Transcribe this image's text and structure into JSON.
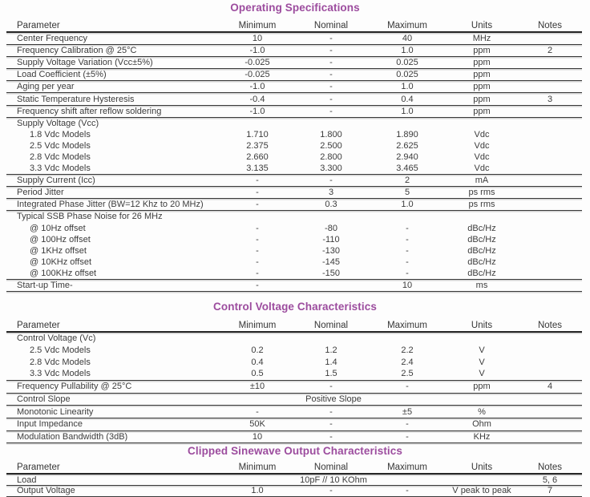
{
  "colors": {
    "accent": "#9c4c9e",
    "text": "#3c3c3c",
    "rule": "#3a3a3a"
  },
  "tables": [
    {
      "title": "Operating Specifications",
      "columns": [
        "Parameter",
        "Minimum",
        "Nominal",
        "Maximum",
        "Units",
        "Notes"
      ],
      "rows": [
        {
          "type": "data",
          "param": "Center Frequency",
          "min": "10",
          "nom": "-",
          "max": "40",
          "units": "MHz",
          "notes": ""
        },
        {
          "type": "data",
          "param": "Frequency Calibration @ 25°C",
          "min": "-1.0",
          "nom": "-",
          "max": "1.0",
          "units": "ppm",
          "notes": "2"
        },
        {
          "type": "data",
          "param": "Supply Voltage Variation (Vcc±5%)",
          "min": "-0.025",
          "nom": "-",
          "max": "0.025",
          "units": "ppm",
          "notes": ""
        },
        {
          "type": "data",
          "param": "Load Coefficient (±5%)",
          "min": "-0.025",
          "nom": "-",
          "max": "0.025",
          "units": "ppm",
          "notes": ""
        },
        {
          "type": "data",
          "param": "Aging per year",
          "min": "-1.0",
          "nom": "-",
          "max": "1.0",
          "units": "ppm",
          "notes": ""
        },
        {
          "type": "data",
          "param": "Static Temperature Hysteresis",
          "min": "-0.4",
          "nom": "-",
          "max": "0.4",
          "units": "ppm",
          "notes": "3"
        },
        {
          "type": "data",
          "param": "Frequency shift after reflow soldering",
          "min": "-1.0",
          "nom": "-",
          "max": "1.0",
          "units": "ppm",
          "notes": ""
        },
        {
          "type": "group",
          "param": "Supply Voltage (Vcc)",
          "min": "",
          "nom": "",
          "max": "",
          "units": "",
          "notes": ""
        },
        {
          "type": "sub",
          "param": "1.8 Vdc Models",
          "min": "1.710",
          "nom": "1.800",
          "max": "1.890",
          "units": "Vdc",
          "notes": ""
        },
        {
          "type": "sub",
          "param": "2.5 Vdc Models",
          "min": "2.375",
          "nom": "2.500",
          "max": "2.625",
          "units": "Vdc",
          "notes": ""
        },
        {
          "type": "sub",
          "param": "2.8 Vdc Models",
          "min": "2.660",
          "nom": "2.800",
          "max": "2.940",
          "units": "Vdc",
          "notes": ""
        },
        {
          "type": "sublast",
          "param": "3.3 Vdc Models",
          "min": "3.135",
          "nom": "3.300",
          "max": "3.465",
          "units": "Vdc",
          "notes": ""
        },
        {
          "type": "data",
          "param": "Supply Current (Icc)",
          "min": "-",
          "nom": "-",
          "max": "2",
          "units": "mA",
          "notes": ""
        },
        {
          "type": "data",
          "param": "Period Jitter",
          "min": "-",
          "nom": "3",
          "max": "5",
          "units": "ps rms",
          "notes": ""
        },
        {
          "type": "data",
          "param": "Integrated Phase Jitter (BW=12 Khz to 20 MHz)",
          "min": "-",
          "nom": "0.3",
          "max": "1.0",
          "units": "ps rms",
          "notes": ""
        },
        {
          "type": "group",
          "param": "Typical SSB Phase Noise for 26 MHz",
          "min": "",
          "nom": "",
          "max": "",
          "units": "",
          "notes": ""
        },
        {
          "type": "sub",
          "param": "@ 10Hz offset",
          "min": "-",
          "nom": "-80",
          "max": "-",
          "units": "dBc/Hz",
          "notes": ""
        },
        {
          "type": "sub",
          "param": "@ 100Hz offset",
          "min": "-",
          "nom": "-110",
          "max": "-",
          "units": "dBc/Hz",
          "notes": ""
        },
        {
          "type": "sub",
          "param": "@ 1KHz offset",
          "min": "-",
          "nom": "-130",
          "max": "-",
          "units": "dBc/Hz",
          "notes": ""
        },
        {
          "type": "sub",
          "param": "@ 10KHz offset",
          "min": "-",
          "nom": "-145",
          "max": "-",
          "units": "dBc/Hz",
          "notes": ""
        },
        {
          "type": "sublast",
          "param": "@ 100KHz offset",
          "min": "-",
          "nom": "-150",
          "max": "-",
          "units": "dBc/Hz",
          "notes": ""
        },
        {
          "type": "data",
          "param": "Start-up Time-",
          "min": "-",
          "nom": "",
          "max": "10",
          "units": "ms",
          "notes": ""
        }
      ]
    },
    {
      "title": "Control Voltage Characteristics",
      "columns": [
        "Parameter",
        "Minimum",
        "Nominal",
        "Maximum",
        "Units",
        "Notes"
      ],
      "rows": [
        {
          "type": "group",
          "param": "Control Voltage (Vc)",
          "min": "",
          "nom": "",
          "max": "",
          "units": "",
          "notes": ""
        },
        {
          "type": "sub",
          "param": "2.5 Vdc Models",
          "min": "0.2",
          "nom": "1.2",
          "max": "2.2",
          "units": "V",
          "notes": ""
        },
        {
          "type": "sub",
          "param": "2.8 Vdc Models",
          "min": "0.4",
          "nom": "1.4",
          "max": "2.4",
          "units": "V",
          "notes": ""
        },
        {
          "type": "sublast",
          "param": "3.3 Vdc Models",
          "min": "0.5",
          "nom": "1.5",
          "max": "2.5",
          "units": "V",
          "notes": ""
        },
        {
          "type": "data",
          "param": "Frequency Pullability @ 25°C",
          "min": "±10",
          "nom": "-",
          "max": "-",
          "units": "ppm",
          "notes": "4"
        },
        {
          "type": "span",
          "param": "Control Slope",
          "span": "Positive Slope",
          "units": "",
          "notes": ""
        },
        {
          "type": "data",
          "param": "Monotonic Linearity",
          "min": "-",
          "nom": "-",
          "max": "±5",
          "units": "%",
          "notes": ""
        },
        {
          "type": "data",
          "param": "Input Impedance",
          "min": "50K",
          "nom": "-",
          "max": "-",
          "units": "Ohm",
          "notes": ""
        },
        {
          "type": "data",
          "param": "Modulation Bandwidth (3dB)",
          "min": "10",
          "nom": "-",
          "max": "-",
          "units": "KHz",
          "notes": ""
        }
      ]
    },
    {
      "title": "Clipped Sinewave Output Characteristics",
      "columns": [
        "Parameter",
        "Minimum",
        "Nominal",
        "Maximum",
        "Units",
        "Notes"
      ],
      "rows": [
        {
          "type": "span",
          "param": "Load",
          "span": "10pF // 10 KOhm",
          "units": "",
          "notes": "5, 6"
        },
        {
          "type": "data",
          "param": "Output Voltage",
          "min": "1.0",
          "nom": "-",
          "max": "-",
          "units": "V peak to peak",
          "notes": "7"
        }
      ]
    }
  ]
}
